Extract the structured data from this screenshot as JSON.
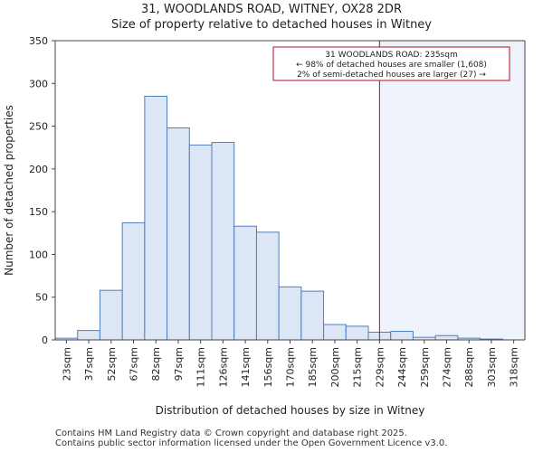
{
  "chart_data": {
    "type": "bar",
    "title": "31, WOODLANDS ROAD, WITNEY, OX28 2DR",
    "subtitle": "Size of property relative to detached houses in Witney",
    "xlabel": "Distribution of detached houses by size in Witney",
    "ylabel": "Number of detached properties",
    "ylim": [
      0,
      350
    ],
    "yticks": [
      0,
      50,
      100,
      150,
      200,
      250,
      300,
      350
    ],
    "categories": [
      "23sqm",
      "37sqm",
      "52sqm",
      "67sqm",
      "82sqm",
      "97sqm",
      "111sqm",
      "126sqm",
      "141sqm",
      "156sqm",
      "170sqm",
      "185sqm",
      "200sqm",
      "215sqm",
      "229sqm",
      "244sqm",
      "259sqm",
      "274sqm",
      "288sqm",
      "303sqm",
      "318sqm"
    ],
    "values": [
      2,
      11,
      58,
      137,
      285,
      248,
      228,
      231,
      133,
      126,
      62,
      57,
      18,
      16,
      9,
      10,
      3,
      5,
      2,
      1,
      0
    ],
    "marker_index": 14.5,
    "bar_color": "#dce6f4",
    "bar_edge": "#4f7fbd",
    "highlight_color": "#eef2fb",
    "marker_color": "#b0102a",
    "annotation": {
      "line1": "31 WOODLANDS ROAD: 235sqm",
      "line2": "← 98% of detached houses are smaller (1,608)",
      "line3": "2% of semi-detached houses are larger (27) →"
    }
  },
  "footer": {
    "line1": "Contains HM Land Registry data © Crown copyright and database right 2025.",
    "line2": "Contains public sector information licensed under the Open Government Licence v3.0."
  }
}
